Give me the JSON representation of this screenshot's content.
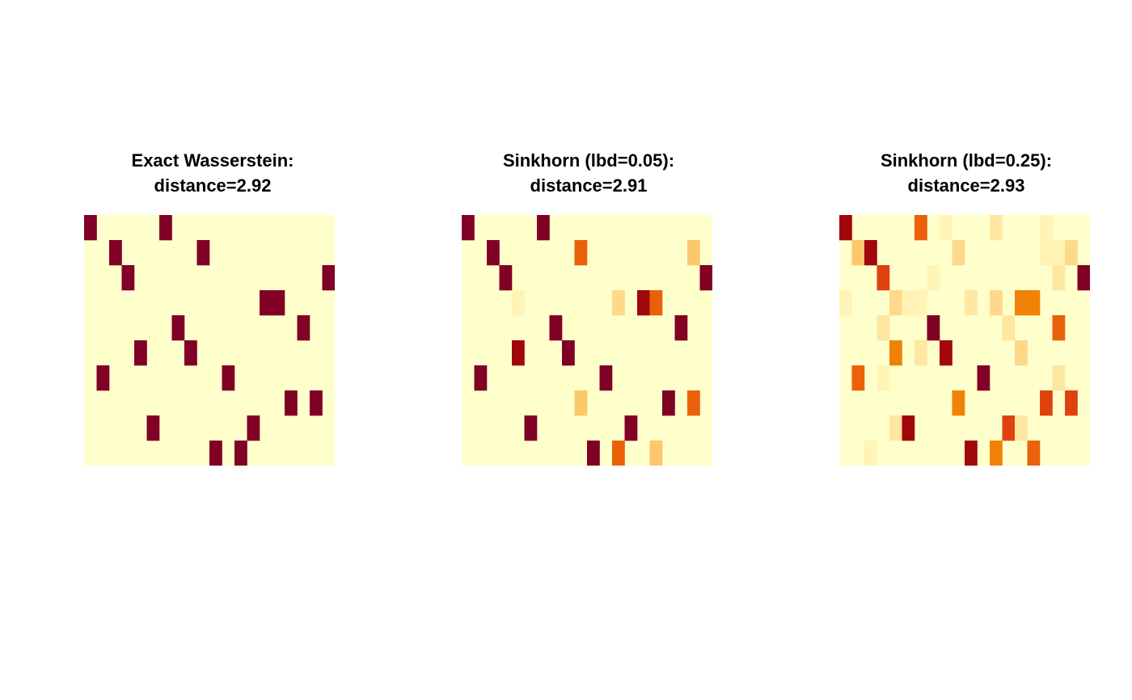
{
  "figure": {
    "colors": {
      "low": "#FFFFCC",
      "scale": [
        "#FFFFCC",
        "#FFF4B6",
        "#FEE7A0",
        "#FED98B",
        "#FDC76C",
        "#F8A420",
        "#F08307",
        "#EB6109",
        "#E0420F",
        "#C42206",
        "#A1070D",
        "#800026"
      ]
    }
  },
  "chart_data": [
    {
      "type": "heatmap",
      "title": [
        "Exact Wasserstein:",
        "distance=2.92"
      ],
      "xlabel": "",
      "ylabel": "",
      "rows": 10,
      "cols": 20,
      "color_scale": "YlOrRd (light = low, dark red = high)",
      "cells": [
        {
          "row": 0,
          "col": 0,
          "value": 1.0
        },
        {
          "row": 0,
          "col": 6,
          "value": 1.0
        },
        {
          "row": 1,
          "col": 2,
          "value": 1.0
        },
        {
          "row": 1,
          "col": 9,
          "value": 1.0
        },
        {
          "row": 2,
          "col": 3,
          "value": 1.0
        },
        {
          "row": 2,
          "col": 19,
          "value": 1.0
        },
        {
          "row": 3,
          "col": 14,
          "value": 1.0
        },
        {
          "row": 3,
          "col": 15,
          "value": 1.0
        },
        {
          "row": 4,
          "col": 7,
          "value": 1.0
        },
        {
          "row": 4,
          "col": 17,
          "value": 1.0
        },
        {
          "row": 5,
          "col": 4,
          "value": 1.0
        },
        {
          "row": 5,
          "col": 8,
          "value": 1.0
        },
        {
          "row": 6,
          "col": 1,
          "value": 1.0
        },
        {
          "row": 6,
          "col": 11,
          "value": 1.0
        },
        {
          "row": 7,
          "col": 16,
          "value": 1.0
        },
        {
          "row": 7,
          "col": 18,
          "value": 1.0
        },
        {
          "row": 8,
          "col": 5,
          "value": 1.0
        },
        {
          "row": 8,
          "col": 13,
          "value": 1.0
        },
        {
          "row": 9,
          "col": 10,
          "value": 1.0
        },
        {
          "row": 9,
          "col": 12,
          "value": 1.0
        }
      ]
    },
    {
      "type": "heatmap",
      "title": [
        "Sinkhorn (lbd=0.05):",
        "distance=2.91"
      ],
      "xlabel": "",
      "ylabel": "",
      "rows": 10,
      "cols": 20,
      "color_scale": "YlOrRd (light = low, dark red = high)",
      "cells": [
        {
          "row": 0,
          "col": 0,
          "value": 1.0
        },
        {
          "row": 0,
          "col": 6,
          "value": 1.0
        },
        {
          "row": 1,
          "col": 2,
          "value": 1.0
        },
        {
          "row": 1,
          "col": 9,
          "value": 0.6
        },
        {
          "row": 1,
          "col": 18,
          "value": 0.4
        },
        {
          "row": 2,
          "col": 3,
          "value": 1.0
        },
        {
          "row": 2,
          "col": 19,
          "value": 1.0
        },
        {
          "row": 3,
          "col": 4,
          "value": 0.1
        },
        {
          "row": 3,
          "col": 12,
          "value": 0.25
        },
        {
          "row": 3,
          "col": 14,
          "value": 0.95
        },
        {
          "row": 3,
          "col": 15,
          "value": 0.6
        },
        {
          "row": 4,
          "col": 7,
          "value": 1.0
        },
        {
          "row": 4,
          "col": 17,
          "value": 1.0
        },
        {
          "row": 5,
          "col": 4,
          "value": 0.95
        },
        {
          "row": 5,
          "col": 8,
          "value": 1.0
        },
        {
          "row": 6,
          "col": 1,
          "value": 1.0
        },
        {
          "row": 6,
          "col": 11,
          "value": 1.0
        },
        {
          "row": 7,
          "col": 9,
          "value": 0.4
        },
        {
          "row": 7,
          "col": 16,
          "value": 1.0
        },
        {
          "row": 7,
          "col": 18,
          "value": 0.6
        },
        {
          "row": 8,
          "col": 5,
          "value": 1.0
        },
        {
          "row": 8,
          "col": 13,
          "value": 1.0
        },
        {
          "row": 9,
          "col": 10,
          "value": 1.0
        },
        {
          "row": 9,
          "col": 12,
          "value": 0.6
        },
        {
          "row": 9,
          "col": 15,
          "value": 0.4
        }
      ]
    },
    {
      "type": "heatmap",
      "title": [
        "Sinkhorn (lbd=0.25):",
        "distance=2.93"
      ],
      "xlabel": "",
      "ylabel": "",
      "rows": 10,
      "cols": 20,
      "color_scale": "YlOrRd (light = low, dark red = high)",
      "cells": [
        {
          "row": 0,
          "col": 0,
          "value": 0.95
        },
        {
          "row": 0,
          "col": 6,
          "value": 0.6
        },
        {
          "row": 0,
          "col": 8,
          "value": 0.1
        },
        {
          "row": 0,
          "col": 12,
          "value": 0.15
        },
        {
          "row": 0,
          "col": 16,
          "value": 0.1
        },
        {
          "row": 1,
          "col": 1,
          "value": 0.4
        },
        {
          "row": 1,
          "col": 2,
          "value": 0.9
        },
        {
          "row": 1,
          "col": 9,
          "value": 0.25
        },
        {
          "row": 1,
          "col": 16,
          "value": 0.1
        },
        {
          "row": 1,
          "col": 17,
          "value": 0.1
        },
        {
          "row": 1,
          "col": 18,
          "value": 0.25
        },
        {
          "row": 2,
          "col": 3,
          "value": 0.7
        },
        {
          "row": 2,
          "col": 7,
          "value": 0.1
        },
        {
          "row": 2,
          "col": 17,
          "value": 0.15
        },
        {
          "row": 2,
          "col": 19,
          "value": 1.0
        },
        {
          "row": 3,
          "col": 0,
          "value": 0.1
        },
        {
          "row": 3,
          "col": 4,
          "value": 0.25
        },
        {
          "row": 3,
          "col": 5,
          "value": 0.1
        },
        {
          "row": 3,
          "col": 6,
          "value": 0.1
        },
        {
          "row": 3,
          "col": 10,
          "value": 0.15
        },
        {
          "row": 3,
          "col": 12,
          "value": 0.25
        },
        {
          "row": 3,
          "col": 14,
          "value": 0.5
        },
        {
          "row": 3,
          "col": 15,
          "value": 0.5
        },
        {
          "row": 4,
          "col": 3,
          "value": 0.15
        },
        {
          "row": 4,
          "col": 7,
          "value": 1.0
        },
        {
          "row": 4,
          "col": 13,
          "value": 0.2
        },
        {
          "row": 4,
          "col": 17,
          "value": 0.6
        },
        {
          "row": 5,
          "col": 4,
          "value": 0.55
        },
        {
          "row": 5,
          "col": 6,
          "value": 0.2
        },
        {
          "row": 5,
          "col": 8,
          "value": 0.95
        },
        {
          "row": 5,
          "col": 14,
          "value": 0.25
        },
        {
          "row": 6,
          "col": 1,
          "value": 0.6
        },
        {
          "row": 6,
          "col": 3,
          "value": 0.1
        },
        {
          "row": 6,
          "col": 11,
          "value": 1.0
        },
        {
          "row": 6,
          "col": 17,
          "value": 0.15
        },
        {
          "row": 7,
          "col": 9,
          "value": 0.55
        },
        {
          "row": 7,
          "col": 16,
          "value": 0.7
        },
        {
          "row": 7,
          "col": 18,
          "value": 0.7
        },
        {
          "row": 8,
          "col": 4,
          "value": 0.2
        },
        {
          "row": 8,
          "col": 5,
          "value": 0.9
        },
        {
          "row": 8,
          "col": 13,
          "value": 0.7
        },
        {
          "row": 8,
          "col": 14,
          "value": 0.2
        },
        {
          "row": 9,
          "col": 2,
          "value": 0.1
        },
        {
          "row": 9,
          "col": 10,
          "value": 0.9
        },
        {
          "row": 9,
          "col": 12,
          "value": 0.5
        },
        {
          "row": 9,
          "col": 15,
          "value": 0.6
        }
      ]
    }
  ]
}
